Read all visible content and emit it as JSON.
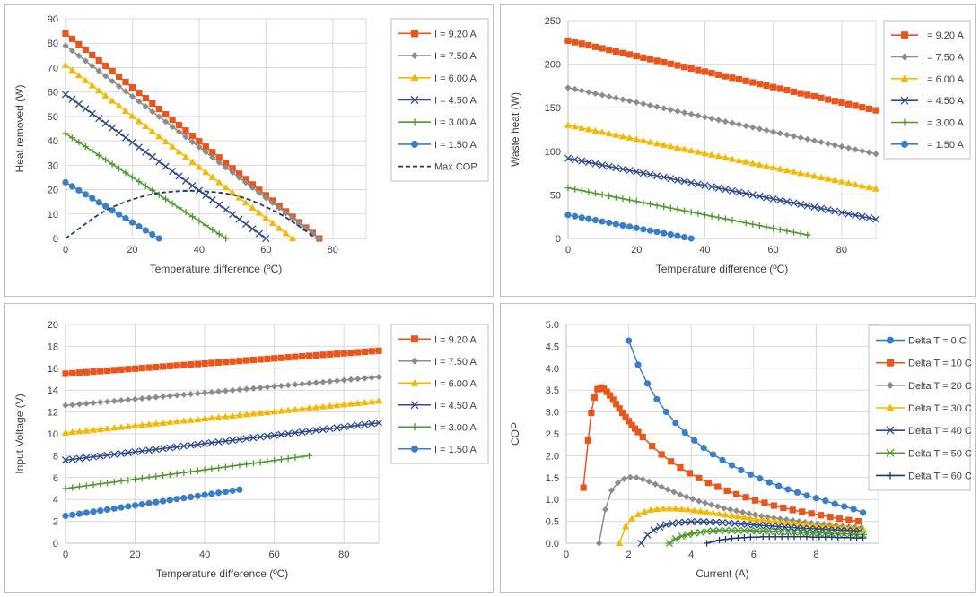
{
  "colors": {
    "orange": "#e8561c",
    "gray": "#8c8c8c",
    "gold": "#f5b800",
    "navy": "#2f4b8c",
    "green": "#4e9a2e",
    "blue": "#3a7dc9",
    "darkblue": "#1f3b6e",
    "grid": "#d9d9d9",
    "axis": "#bfbfbf"
  },
  "chart_data": [
    {
      "type": "line",
      "xlabel": "Temperature difference (ºC)",
      "ylabel": "Heat removed (W)",
      "xlim": [
        0,
        90
      ],
      "ylim": [
        0,
        90
      ],
      "xticks": [
        "0",
        "20",
        "40",
        "60",
        "80"
      ],
      "yticks": [
        "0",
        "10",
        "20",
        "30",
        "40",
        "50",
        "60",
        "70",
        "80",
        "90"
      ],
      "grid": true,
      "legend_position": "right",
      "series": [
        {
          "name": "I = 9.20 A",
          "marker": "square",
          "color": "orange",
          "x_start": 0,
          "x_end": 76,
          "x_step": 2,
          "y_start": 84,
          "y_end": 0
        },
        {
          "name": "I = 7.50 A",
          "marker": "diamond",
          "color": "gray",
          "x_start": 0,
          "x_end": 76,
          "x_step": 2,
          "y_start": 79,
          "y_end": 0
        },
        {
          "name": "I = 6.00 A",
          "marker": "triangle",
          "color": "gold",
          "x_start": 0,
          "x_end": 68,
          "x_step": 2,
          "y_start": 71,
          "y_end": 0
        },
        {
          "name": "I = 4.50 A",
          "marker": "x",
          "color": "navy",
          "x_start": 0,
          "x_end": 60,
          "x_step": 2,
          "y_start": 59,
          "y_end": 0
        },
        {
          "name": "I = 3.00 A",
          "marker": "plus",
          "color": "green",
          "x_start": 0,
          "x_end": 48,
          "x_step": 2,
          "y_start": 43,
          "y_end": 0
        },
        {
          "name": "I = 1.50 A",
          "marker": "circle",
          "color": "blue",
          "x_start": 0,
          "x_end": 28,
          "x_step": 2,
          "y_start": 23,
          "y_end": 0
        }
      ],
      "curve": {
        "name": "Max COP",
        "color": "darkblue",
        "dashed": true,
        "x": [
          0,
          5,
          10,
          15,
          20,
          25,
          30,
          35,
          40,
          45,
          50,
          55,
          60,
          65,
          70,
          75
        ],
        "y": [
          0,
          5,
          10,
          13.5,
          16,
          18,
          19,
          19.5,
          19.5,
          19,
          18,
          16,
          13,
          9.5,
          5,
          0
        ]
      }
    },
    {
      "type": "line",
      "xlabel": "Temperature difference (ºC)",
      "ylabel": "Waste heat (W)",
      "xlim": [
        0,
        90
      ],
      "ylim": [
        0,
        250
      ],
      "xticks": [
        "0",
        "20",
        "40",
        "60",
        "80"
      ],
      "yticks": [
        "0",
        "50",
        "100",
        "150",
        "200",
        "250"
      ],
      "grid": true,
      "legend_position": "right",
      "series": [
        {
          "name": "I = 9.20 A",
          "marker": "square",
          "color": "orange",
          "x_start": 0,
          "x_end": 90,
          "x_step": 2,
          "y_start": 227,
          "y_end": 147
        },
        {
          "name": "I = 7.50 A",
          "marker": "diamond",
          "color": "gray",
          "x_start": 0,
          "x_end": 90,
          "x_step": 2,
          "y_start": 173,
          "y_end": 97
        },
        {
          "name": "I = 6.00 A",
          "marker": "triangle",
          "color": "gold",
          "x_start": 0,
          "x_end": 90,
          "x_step": 2,
          "y_start": 130,
          "y_end": 57
        },
        {
          "name": "I = 4.50 A",
          "marker": "x",
          "color": "navy",
          "x_start": 0,
          "x_end": 90,
          "x_step": 2,
          "y_start": 92,
          "y_end": 22
        },
        {
          "name": "I = 3.00 A",
          "marker": "plus",
          "color": "green",
          "x_start": 0,
          "x_end": 70,
          "x_step": 2,
          "y_start": 58,
          "y_end": 4
        },
        {
          "name": "I = 1.50 A",
          "marker": "circle",
          "color": "blue",
          "x_start": 0,
          "x_end": 36,
          "x_step": 2,
          "y_start": 27,
          "y_end": 0
        }
      ]
    },
    {
      "type": "line",
      "xlabel": "Temperature difference (ºC)",
      "ylabel": "Input Voltage (V)",
      "xlim": [
        0,
        90
      ],
      "ylim": [
        0,
        20
      ],
      "xticks": [
        "0",
        "20",
        "40",
        "60",
        "80"
      ],
      "yticks": [
        "0",
        "2",
        "4",
        "6",
        "8",
        "10",
        "12",
        "14",
        "16",
        "18",
        "20"
      ],
      "grid": true,
      "legend_position": "right",
      "series": [
        {
          "name": "I = 9.20 A",
          "marker": "square",
          "color": "orange",
          "x_start": 0,
          "x_end": 90,
          "x_step": 2,
          "y_start": 15.5,
          "y_end": 17.6
        },
        {
          "name": "I = 7.50 A",
          "marker": "diamond",
          "color": "gray",
          "x_start": 0,
          "x_end": 90,
          "x_step": 2,
          "y_start": 12.6,
          "y_end": 15.2
        },
        {
          "name": "I = 6.00 A",
          "marker": "triangle",
          "color": "gold",
          "x_start": 0,
          "x_end": 90,
          "x_step": 2,
          "y_start": 10.1,
          "y_end": 13.0
        },
        {
          "name": "I = 4.50 A",
          "marker": "x",
          "color": "navy",
          "x_start": 0,
          "x_end": 90,
          "x_step": 2,
          "y_start": 7.6,
          "y_end": 11.0
        },
        {
          "name": "I = 3.00 A",
          "marker": "plus",
          "color": "green",
          "x_start": 0,
          "x_end": 70,
          "x_step": 2,
          "y_start": 5.0,
          "y_end": 8.0
        },
        {
          "name": "I = 1.50 A",
          "marker": "circle",
          "color": "blue",
          "x_start": 0,
          "x_end": 50,
          "x_step": 2,
          "y_start": 2.5,
          "y_end": 4.9
        }
      ]
    },
    {
      "type": "line",
      "xlabel": "Current (A)",
      "ylabel": "COP",
      "xlim": [
        0,
        10
      ],
      "ylim": [
        0,
        5
      ],
      "xticks": [
        "0",
        "2",
        "4",
        "6",
        "8"
      ],
      "yticks": [
        "0.0",
        "0.5",
        "1.0",
        "1.5",
        "2.0",
        "2.5",
        "3.0",
        "3.5",
        "4.0",
        "4.5",
        "5.0"
      ],
      "grid": true,
      "legend_position": "right",
      "series": [
        {
          "name": "Delta T = 0 C",
          "marker": "circle",
          "color": "blue",
          "x": [
            2.0,
            2.3,
            2.6,
            2.9,
            3.2,
            3.5,
            3.8,
            4.1,
            4.4,
            4.7,
            5.0,
            5.3,
            5.6,
            5.9,
            6.2,
            6.5,
            6.8,
            7.1,
            7.4,
            7.7,
            8.0,
            8.3,
            8.6,
            8.9,
            9.2,
            9.5
          ],
          "y": [
            4.63,
            4.08,
            3.65,
            3.29,
            3.0,
            2.75,
            2.53,
            2.35,
            2.18,
            2.03,
            1.9,
            1.78,
            1.67,
            1.57,
            1.48,
            1.39,
            1.31,
            1.23,
            1.16,
            1.09,
            1.03,
            0.97,
            0.9,
            0.84,
            0.78,
            0.7
          ]
        },
        {
          "name": "Delta T = 10 C",
          "marker": "square",
          "color": "orange",
          "x": [
            0.55,
            0.7,
            0.8,
            0.9,
            1.0,
            1.1,
            1.2,
            1.3,
            1.4,
            1.5,
            1.6,
            1.7,
            1.8,
            1.9,
            2.0,
            2.1,
            2.2,
            2.3,
            2.45,
            2.75,
            3.05,
            3.35,
            3.65,
            3.95,
            4.25,
            4.55,
            4.85,
            5.15,
            5.45,
            5.75,
            6.05,
            6.35,
            6.65,
            6.95,
            7.25,
            7.55,
            7.85,
            8.15,
            8.45,
            8.75,
            9.05,
            9.35
          ],
          "y": [
            1.27,
            2.35,
            2.98,
            3.33,
            3.52,
            3.56,
            3.53,
            3.46,
            3.38,
            3.28,
            3.18,
            3.08,
            2.98,
            2.88,
            2.79,
            2.7,
            2.62,
            2.54,
            2.43,
            2.22,
            2.03,
            1.87,
            1.73,
            1.6,
            1.49,
            1.38,
            1.29,
            1.2,
            1.12,
            1.05,
            0.98,
            0.92,
            0.86,
            0.81,
            0.76,
            0.72,
            0.68,
            0.64,
            0.6,
            0.56,
            0.53,
            0.5
          ]
        },
        {
          "name": "Delta T = 20 C",
          "marker": "diamond",
          "color": "gray",
          "x": [
            1.05,
            1.25,
            1.45,
            1.65,
            1.85,
            2.05,
            2.25,
            2.45,
            2.65,
            2.85,
            3.05,
            3.25,
            3.45,
            3.65,
            3.85,
            4.05,
            4.25,
            4.45,
            4.65,
            4.85,
            5.05,
            5.25,
            5.45,
            5.65,
            5.85,
            6.05,
            6.25,
            6.45,
            6.65,
            6.85,
            7.05,
            7.25,
            7.45,
            7.65,
            7.85,
            8.05,
            8.25,
            8.45,
            8.65,
            8.85,
            9.05,
            9.25,
            9.45
          ],
          "y": [
            0.0,
            0.77,
            1.21,
            1.38,
            1.47,
            1.51,
            1.5,
            1.46,
            1.41,
            1.35,
            1.29,
            1.23,
            1.17,
            1.11,
            1.06,
            1.01,
            0.96,
            0.92,
            0.88,
            0.84,
            0.8,
            0.77,
            0.74,
            0.71,
            0.68,
            0.65,
            0.62,
            0.6,
            0.58,
            0.56,
            0.54,
            0.52,
            0.5,
            0.48,
            0.46,
            0.45,
            0.43,
            0.42,
            0.41,
            0.39,
            0.38,
            0.37,
            0.36
          ]
        },
        {
          "name": "Delta T = 30 C",
          "marker": "triangle",
          "color": "gold",
          "x": [
            1.7,
            1.9,
            2.1,
            2.3,
            2.5,
            2.7,
            2.9,
            3.1,
            3.3,
            3.5,
            3.7,
            3.9,
            4.1,
            4.3,
            4.5,
            4.7,
            4.9,
            5.1,
            5.3,
            5.5,
            5.7,
            5.9,
            6.1,
            6.3,
            6.5,
            6.7,
            6.9,
            7.1,
            7.3,
            7.5,
            7.7,
            7.9,
            8.1,
            8.3,
            8.5,
            8.7,
            8.9,
            9.1,
            9.3,
            9.5
          ],
          "y": [
            0.0,
            0.38,
            0.56,
            0.66,
            0.72,
            0.76,
            0.78,
            0.79,
            0.79,
            0.79,
            0.78,
            0.77,
            0.75,
            0.73,
            0.71,
            0.69,
            0.67,
            0.65,
            0.63,
            0.61,
            0.59,
            0.57,
            0.55,
            0.53,
            0.51,
            0.5,
            0.48,
            0.47,
            0.45,
            0.44,
            0.43,
            0.41,
            0.4,
            0.39,
            0.38,
            0.37,
            0.36,
            0.35,
            0.34,
            0.33
          ]
        },
        {
          "name": "Delta T = 40 C",
          "marker": "x",
          "color": "navy",
          "x": [
            2.4,
            2.6,
            2.8,
            3.0,
            3.2,
            3.4,
            3.6,
            3.8,
            4.0,
            4.2,
            4.4,
            4.6,
            4.8,
            5.0,
            5.2,
            5.4,
            5.6,
            5.8,
            6.0,
            6.2,
            6.4,
            6.6,
            6.8,
            7.0,
            7.2,
            7.4,
            7.6,
            7.8,
            8.0,
            8.2,
            8.4,
            8.6,
            8.8,
            9.0,
            9.2,
            9.4
          ],
          "y": [
            0.0,
            0.19,
            0.3,
            0.37,
            0.42,
            0.45,
            0.47,
            0.48,
            0.49,
            0.49,
            0.49,
            0.48,
            0.48,
            0.47,
            0.46,
            0.45,
            0.44,
            0.43,
            0.42,
            0.41,
            0.4,
            0.39,
            0.38,
            0.37,
            0.36,
            0.35,
            0.34,
            0.33,
            0.33,
            0.32,
            0.31,
            0.3,
            0.3,
            0.29,
            0.28,
            0.28
          ]
        },
        {
          "name": "Delta T = 50 C",
          "marker": "star",
          "color": "green",
          "x": [
            3.3,
            3.5,
            3.7,
            3.9,
            4.1,
            4.3,
            4.5,
            4.7,
            4.9,
            5.1,
            5.3,
            5.5,
            5.7,
            5.9,
            6.1,
            6.3,
            6.5,
            6.7,
            6.9,
            7.1,
            7.3,
            7.5,
            7.7,
            7.9,
            8.1,
            8.3,
            8.5,
            8.7,
            8.9,
            9.1,
            9.3,
            9.5
          ],
          "y": [
            0.0,
            0.1,
            0.16,
            0.2,
            0.23,
            0.25,
            0.27,
            0.28,
            0.29,
            0.29,
            0.29,
            0.29,
            0.29,
            0.29,
            0.28,
            0.28,
            0.27,
            0.27,
            0.26,
            0.26,
            0.25,
            0.25,
            0.24,
            0.24,
            0.23,
            0.23,
            0.22,
            0.22,
            0.21,
            0.21,
            0.2,
            0.2
          ]
        },
        {
          "name": "Delta T = 60 C",
          "marker": "plus",
          "color": "darkblue",
          "x": [
            4.5,
            4.7,
            4.9,
            5.1,
            5.3,
            5.5,
            5.7,
            5.9,
            6.1,
            6.3,
            6.5,
            6.7,
            6.9,
            7.1,
            7.3,
            7.5,
            7.7,
            7.9,
            8.1,
            8.3,
            8.5,
            8.7,
            8.9,
            9.1,
            9.3,
            9.5
          ],
          "y": [
            0.0,
            0.04,
            0.07,
            0.09,
            0.11,
            0.12,
            0.13,
            0.14,
            0.14,
            0.15,
            0.15,
            0.15,
            0.15,
            0.15,
            0.15,
            0.15,
            0.15,
            0.14,
            0.14,
            0.14,
            0.14,
            0.13,
            0.13,
            0.13,
            0.12,
            0.12
          ]
        }
      ]
    }
  ]
}
